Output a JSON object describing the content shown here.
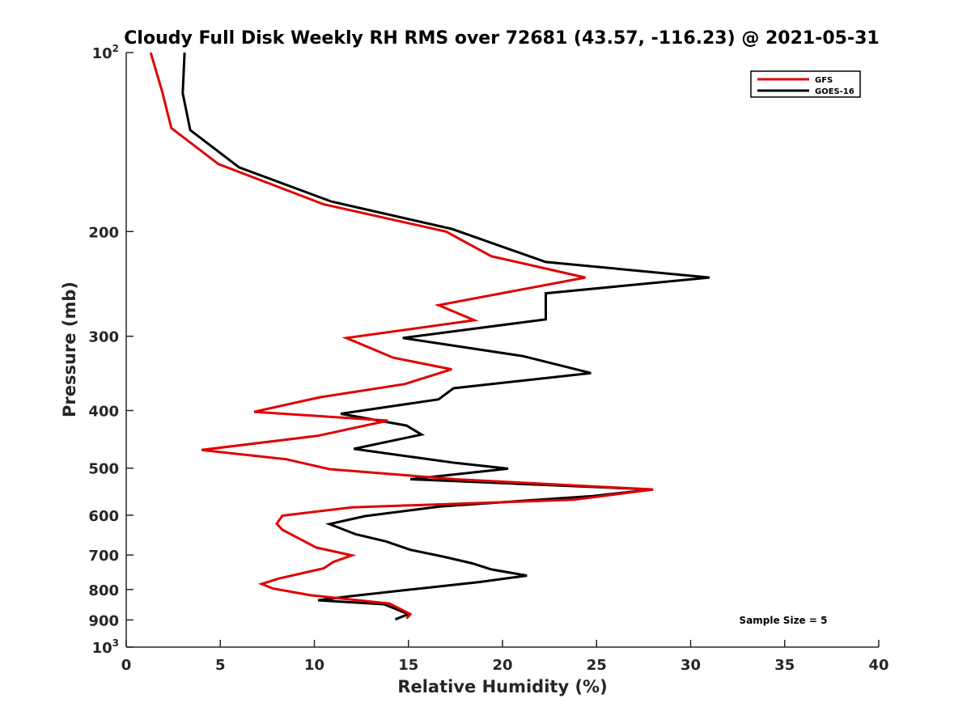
{
  "chart_data": {
    "type": "line",
    "title": "Cloudy Full Disk Weekly RH RMS over 72681 (43.57, -116.23) @ 2021-05-31",
    "xlabel": "Relative Humidity (%)",
    "ylabel": "Pressure (mb)",
    "xlim": [
      0,
      40
    ],
    "ylim": [
      100,
      1000
    ],
    "y_scale": "log",
    "y_reversed": true,
    "x_ticks": [
      0,
      5,
      10,
      15,
      20,
      25,
      30,
      35,
      40
    ],
    "y_ticks": [
      {
        "value": 100,
        "label": "10",
        "exp": "2"
      },
      {
        "value": 200,
        "label": "200"
      },
      {
        "value": 300,
        "label": "300"
      },
      {
        "value": 400,
        "label": "400"
      },
      {
        "value": 500,
        "label": "500"
      },
      {
        "value": 600,
        "label": "600"
      },
      {
        "value": 700,
        "label": "700"
      },
      {
        "value": 800,
        "label": "800"
      },
      {
        "value": 900,
        "label": "900"
      },
      {
        "value": 1000,
        "label": "10",
        "exp": "3"
      }
    ],
    "grid": false,
    "legend_position": "top-right",
    "annotation": "Sample Size = 5",
    "series": [
      {
        "name": "GFS",
        "color": "#e00000",
        "points": [
          [
            1.3,
            100
          ],
          [
            1.9,
            116
          ],
          [
            2.4,
            134
          ],
          [
            4.9,
            154
          ],
          [
            10.5,
            180
          ],
          [
            17.0,
            200
          ],
          [
            19.4,
            220
          ],
          [
            24.4,
            239
          ],
          [
            16.6,
            266
          ],
          [
            18.5,
            282
          ],
          [
            11.7,
            302
          ],
          [
            14.2,
            326
          ],
          [
            17.3,
            341
          ],
          [
            14.8,
            361
          ],
          [
            10.3,
            380
          ],
          [
            6.8,
            402
          ],
          [
            13.9,
            416
          ],
          [
            10.2,
            441
          ],
          [
            4.0,
            466
          ],
          [
            8.5,
            483
          ],
          [
            10.8,
            502
          ],
          [
            17.5,
            522
          ],
          [
            28.0,
            543
          ],
          [
            23.8,
            565
          ],
          [
            12.0,
            582
          ],
          [
            8.3,
            601
          ],
          [
            8.0,
            620
          ],
          [
            8.3,
            635
          ],
          [
            9.2,
            657
          ],
          [
            10.1,
            680
          ],
          [
            12.0,
            701
          ],
          [
            11.0,
            719
          ],
          [
            10.5,
            737
          ],
          [
            8.1,
            767
          ],
          [
            7.2,
            783
          ],
          [
            7.8,
            797
          ],
          [
            9.8,
            818
          ],
          [
            14.0,
            845
          ],
          [
            15.1,
            880
          ],
          [
            14.9,
            895
          ]
        ]
      },
      {
        "name": "GOES-16",
        "color": "#000000",
        "points": [
          [
            3.1,
            100
          ],
          [
            3.0,
            117
          ],
          [
            3.4,
            135
          ],
          [
            6.0,
            156
          ],
          [
            10.9,
            178
          ],
          [
            17.3,
            198
          ],
          [
            22.3,
            225
          ],
          [
            31.0,
            239
          ],
          [
            22.3,
            254
          ],
          [
            22.3,
            281
          ],
          [
            14.7,
            302
          ],
          [
            21.1,
            324
          ],
          [
            24.7,
            346
          ],
          [
            17.4,
            367
          ],
          [
            16.6,
            383
          ],
          [
            11.4,
            405
          ],
          [
            14.9,
            424
          ],
          [
            15.7,
            439
          ],
          [
            12.1,
            464
          ],
          [
            17.5,
            490
          ],
          [
            20.3,
            501
          ],
          [
            15.1,
            522
          ],
          [
            28.0,
            543
          ],
          [
            24.8,
            557
          ],
          [
            16.7,
            580
          ],
          [
            12.7,
            602
          ],
          [
            10.8,
            621
          ],
          [
            12.2,
            646
          ],
          [
            13.8,
            664
          ],
          [
            15.1,
            686
          ],
          [
            16.9,
            705
          ],
          [
            18.4,
            723
          ],
          [
            19.4,
            740
          ],
          [
            21.3,
            758
          ],
          [
            18.8,
            777
          ],
          [
            15.6,
            797
          ],
          [
            11.8,
            822
          ],
          [
            10.2,
            834
          ],
          [
            13.7,
            847
          ],
          [
            15.0,
            880
          ],
          [
            14.3,
            898
          ]
        ]
      }
    ]
  }
}
